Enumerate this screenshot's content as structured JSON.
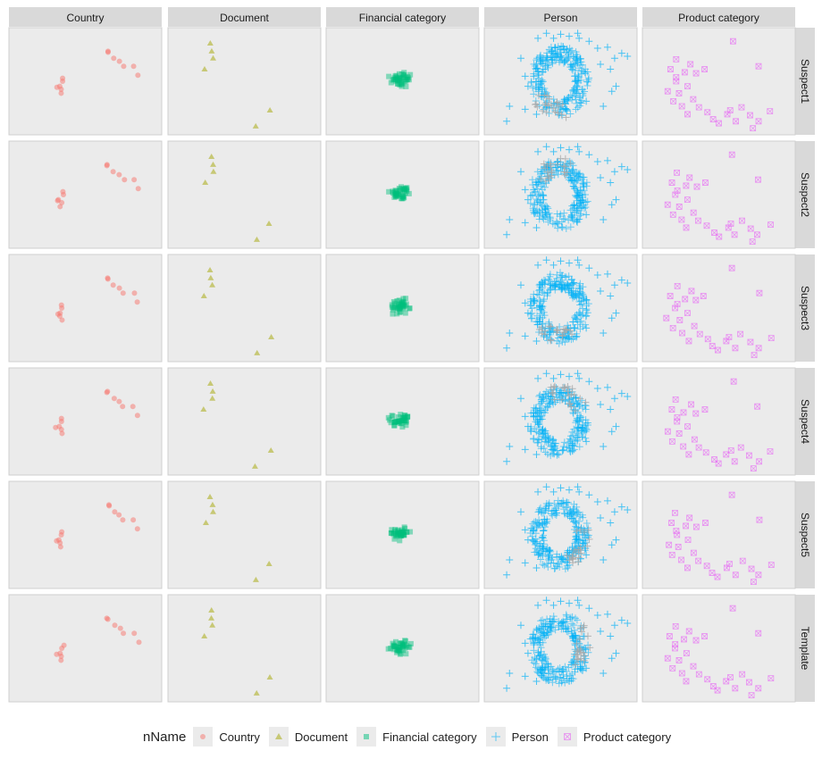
{
  "chart_data": {
    "type": "scatter",
    "title": "",
    "xlabel": "",
    "ylabel": "",
    "grid": false,
    "legend_position": "bottom",
    "legend_title": "nName",
    "columns": [
      "Country",
      "Document",
      "Financial category",
      "Person",
      "Product category"
    ],
    "rows": [
      "Suspect1",
      "Suspect2",
      "Suspect3",
      "Suspect4",
      "Suspect5",
      "Template"
    ],
    "series": [
      {
        "name": "Country",
        "shape": "circle",
        "color": "#F8766D"
      },
      {
        "name": "Document",
        "shape": "triangle",
        "color": "#A3A500"
      },
      {
        "name": "Financial category",
        "shape": "square",
        "color": "#00BF7D"
      },
      {
        "name": "Person",
        "shape": "plus",
        "color": "#00B0F6"
      },
      {
        "name": "Product category",
        "shape": "square-x",
        "color": "#E76BF3"
      }
    ],
    "highlight_color": "#A8A8A8",
    "panel_points": {
      "Country": [
        [
          0.33,
          0.58
        ],
        [
          0.34,
          0.5
        ],
        [
          0.32,
          0.55
        ],
        [
          0.33,
          0.62
        ],
        [
          0.34,
          0.47
        ],
        [
          0.3,
          0.56
        ],
        [
          0.66,
          0.21
        ],
        [
          0.7,
          0.27
        ],
        [
          0.74,
          0.3
        ],
        [
          0.77,
          0.35
        ],
        [
          0.84,
          0.35
        ],
        [
          0.87,
          0.44
        ],
        [
          0.66,
          0.2
        ]
      ],
      "Document": [
        [
          0.26,
          0.12
        ],
        [
          0.27,
          0.2
        ],
        [
          0.28,
          0.27
        ],
        [
          0.22,
          0.38
        ],
        [
          0.68,
          0.79
        ],
        [
          0.58,
          0.95
        ]
      ],
      "Financial category": [
        [
          0.45,
          0.48
        ],
        [
          0.49,
          0.45
        ],
        [
          0.5,
          0.5
        ],
        [
          0.46,
          0.46
        ],
        [
          0.52,
          0.48
        ],
        [
          0.48,
          0.52
        ],
        [
          0.43,
          0.47
        ],
        [
          0.5,
          0.46
        ],
        [
          0.47,
          0.5
        ],
        [
          0.53,
          0.47
        ],
        [
          0.44,
          0.5
        ],
        [
          0.49,
          0.49
        ],
        [
          0.51,
          0.44
        ],
        [
          0.46,
          0.52
        ],
        [
          0.5,
          0.52
        ]
      ],
      "Person": [
        [
          0.34,
          0.07
        ],
        [
          0.45,
          0.07
        ],
        [
          0.5,
          0.03
        ],
        [
          0.56,
          0.05
        ],
        [
          0.63,
          0.07
        ],
        [
          0.7,
          0.1
        ],
        [
          0.76,
          0.17
        ],
        [
          0.83,
          0.16
        ],
        [
          0.88,
          0.27
        ],
        [
          0.93,
          0.22
        ],
        [
          0.97,
          0.25
        ],
        [
          0.78,
          0.33
        ],
        [
          0.85,
          0.38
        ],
        [
          0.89,
          0.55
        ],
        [
          0.22,
          0.27
        ],
        [
          0.25,
          0.45
        ],
        [
          0.27,
          0.55
        ],
        [
          0.31,
          0.45
        ],
        [
          0.14,
          0.75
        ],
        [
          0.25,
          0.78
        ],
        [
          0.33,
          0.83
        ],
        [
          0.12,
          0.9
        ],
        [
          0.8,
          0.75
        ],
        [
          0.68,
          0.7
        ],
        [
          0.86,
          0.6
        ],
        [
          0.4,
          0.02
        ],
        [
          0.62,
          0.02
        ]
      ],
      "Product category": [
        [
          0.2,
          0.28
        ],
        [
          0.16,
          0.38
        ],
        [
          0.26,
          0.41
        ],
        [
          0.2,
          0.5
        ],
        [
          0.28,
          0.55
        ],
        [
          0.22,
          0.62
        ],
        [
          0.18,
          0.7
        ],
        [
          0.3,
          0.33
        ],
        [
          0.34,
          0.42
        ],
        [
          0.4,
          0.38
        ],
        [
          0.24,
          0.75
        ],
        [
          0.28,
          0.83
        ],
        [
          0.32,
          0.68
        ],
        [
          0.36,
          0.76
        ],
        [
          0.42,
          0.81
        ],
        [
          0.46,
          0.88
        ],
        [
          0.5,
          0.92
        ],
        [
          0.56,
          0.83
        ],
        [
          0.62,
          0.9
        ],
        [
          0.58,
          0.79
        ],
        [
          0.66,
          0.76
        ],
        [
          0.72,
          0.84
        ],
        [
          0.78,
          0.9
        ],
        [
          0.74,
          0.97
        ],
        [
          0.86,
          0.8
        ],
        [
          0.14,
          0.6
        ],
        [
          0.2,
          0.46
        ],
        [
          0.6,
          0.1
        ],
        [
          0.78,
          0.35
        ]
      ]
    },
    "person_ring": {
      "cx": 0.49,
      "cy": 0.5,
      "rx": 0.2,
      "ry": 0.34
    }
  }
}
